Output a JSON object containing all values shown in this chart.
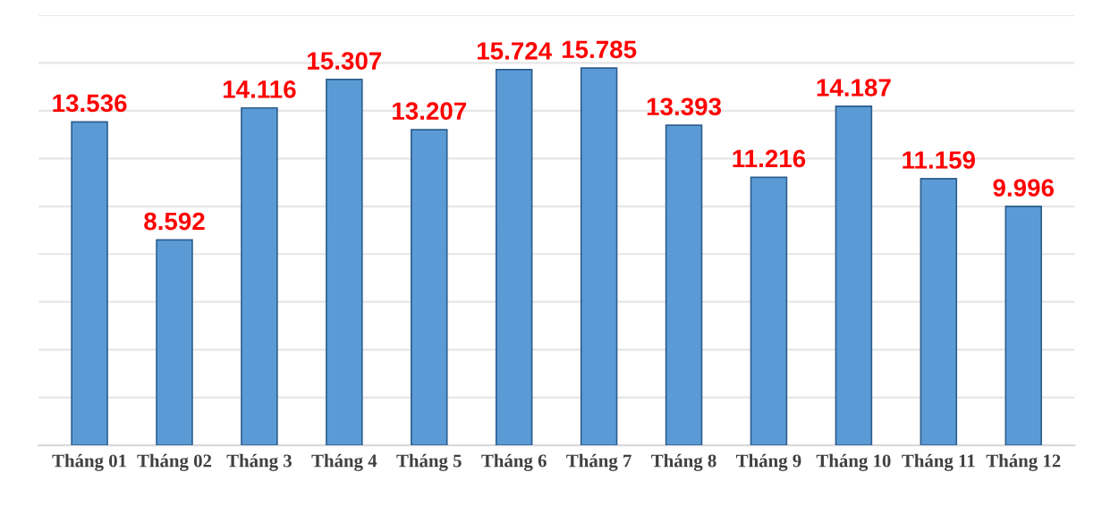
{
  "chart_data": {
    "type": "bar",
    "categories": [
      "Tháng 01",
      "Tháng 02",
      "Tháng 3",
      "Tháng 4",
      "Tháng 5",
      "Tháng 6",
      "Tháng 7",
      "Tháng 8",
      "Tháng 9",
      "Tháng 10",
      "Tháng 11",
      "Tháng 12"
    ],
    "values": [
      13.536,
      8.592,
      14.116,
      15.307,
      13.207,
      15.724,
      15.785,
      13.393,
      11.216,
      14.187,
      11.159,
      9.996
    ],
    "color": "#5b9bd5",
    "data_labels": true,
    "ylim": [
      0,
      18
    ],
    "yticks": [
      {
        "value": 0,
        "label": null
      },
      {
        "value": 2,
        "label": null
      },
      {
        "value": 4,
        "label": null
      },
      {
        "value": 6,
        "label": null
      },
      {
        "value": 8,
        "label": null
      },
      {
        "value": 10,
        "label": null
      },
      {
        "value": 12,
        "label": null
      },
      {
        "value": 14,
        "label": null
      },
      {
        "value": 16,
        "label": null
      },
      {
        "value": 18,
        "label": null
      }
    ],
    "grid": "y",
    "legend": false
  }
}
